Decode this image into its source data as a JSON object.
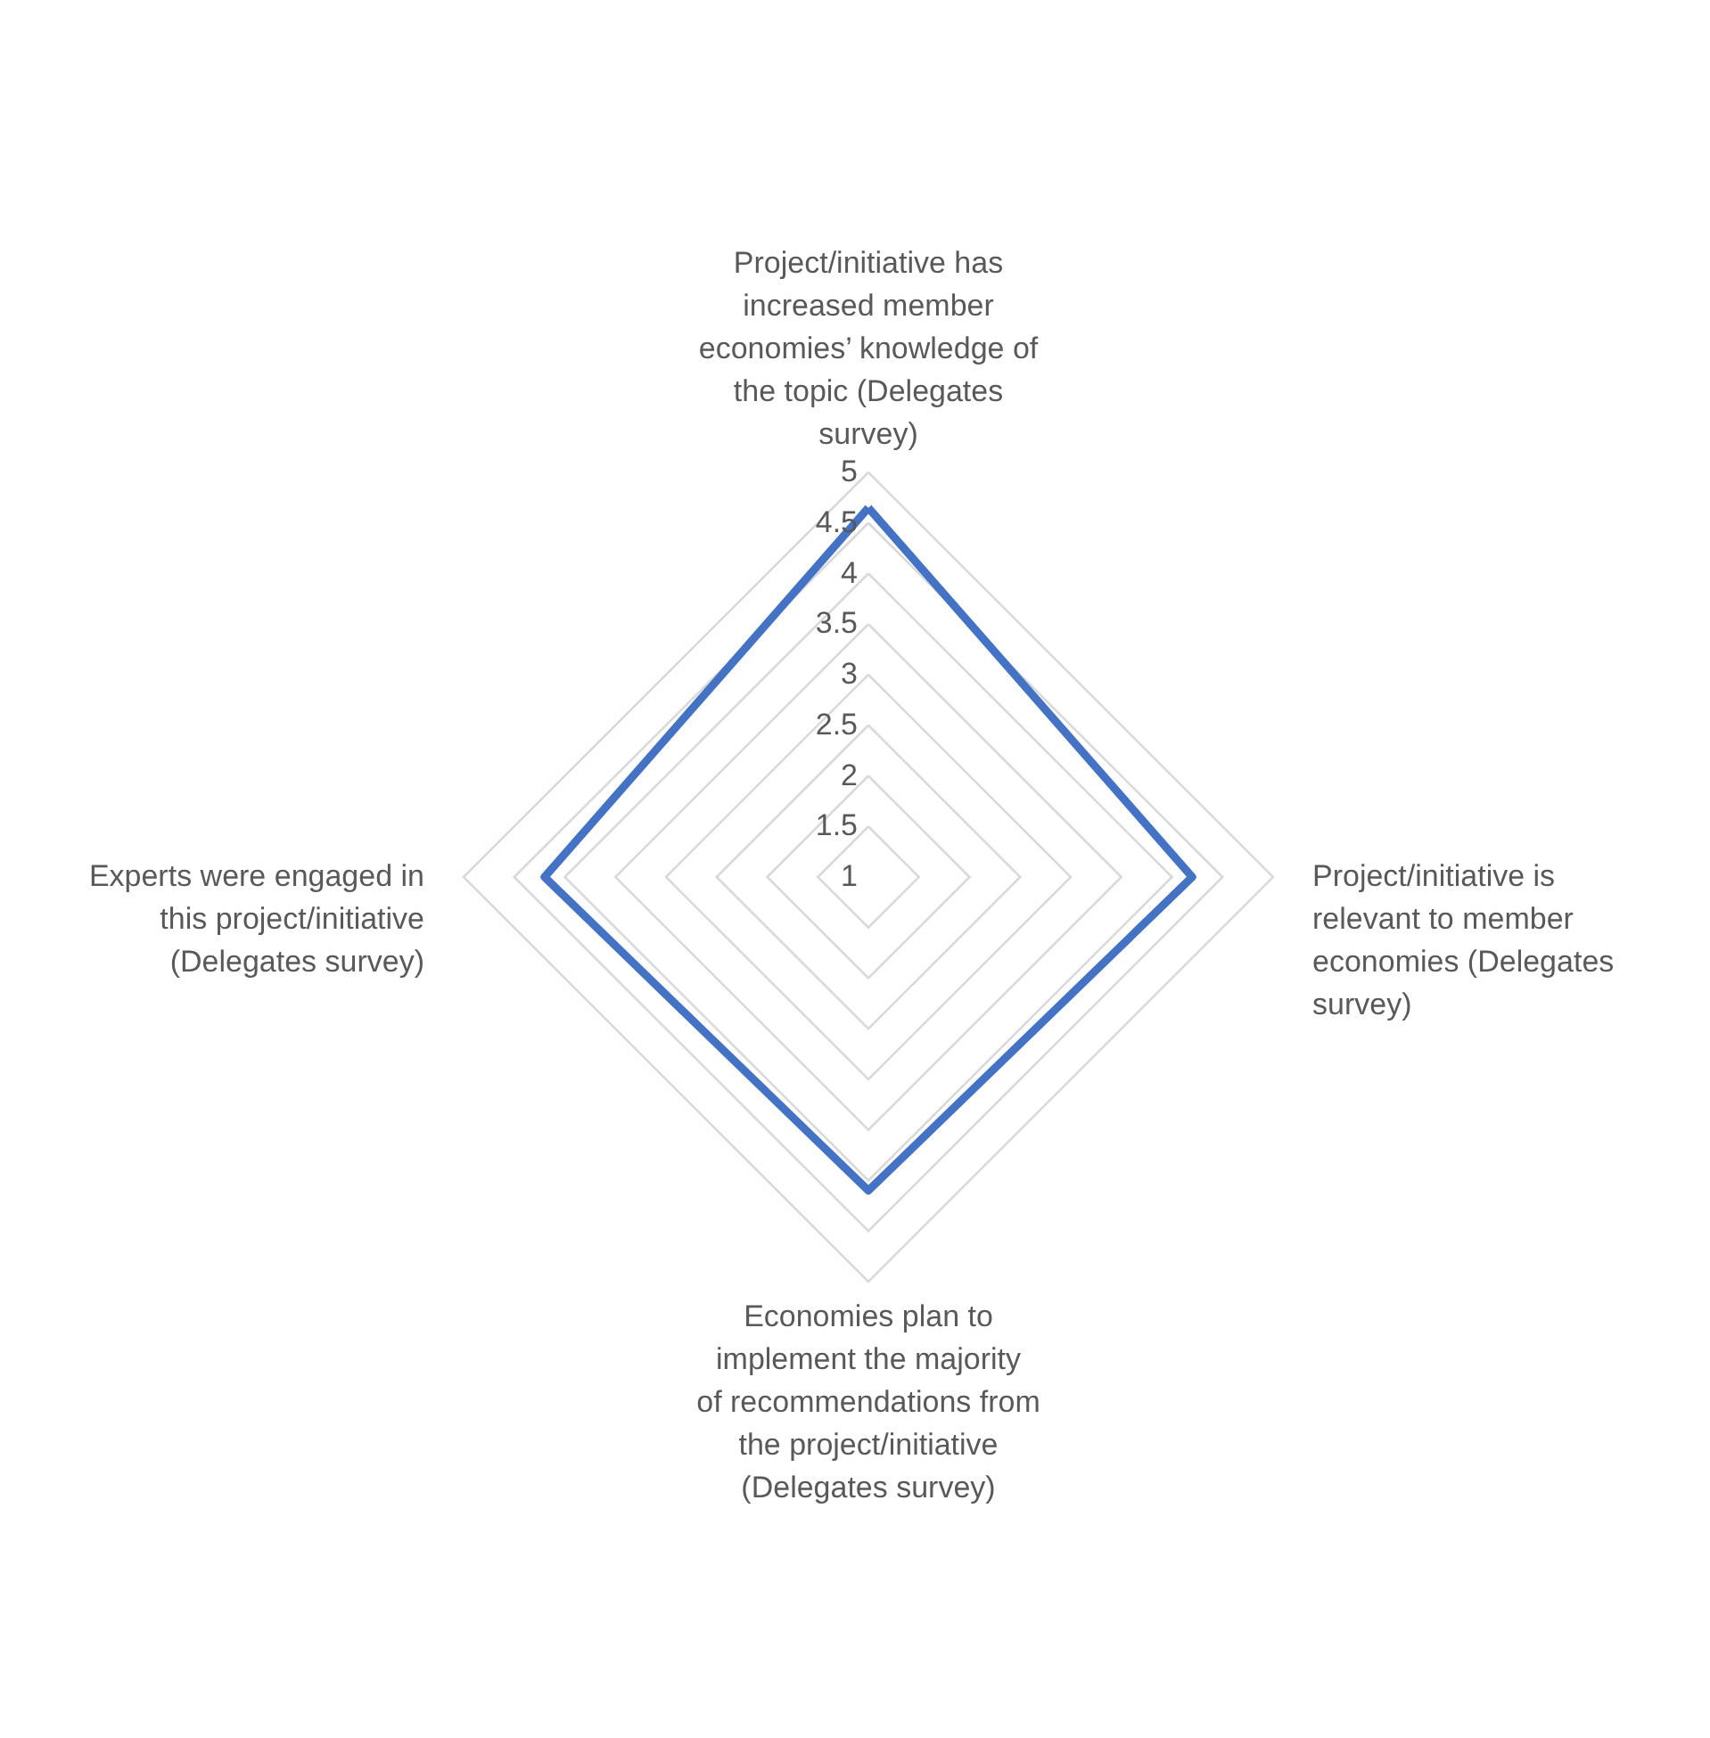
{
  "chart_data": {
    "type": "radar",
    "categories": [
      "Project/initiative has increased member economies’ knowledge of the topic (Delegates survey)",
      "Project/initiative is relevant to member economies (Delegates survey)",
      "Economies plan to implement the majority of recommendations from the project/initiative (Delegates survey)",
      "Experts were engaged in this project/initiative (Delegates survey)"
    ],
    "series": [
      {
        "color": "#4472c4",
        "values": [
          4.65,
          4.2,
          4.1,
          4.2
        ]
      }
    ],
    "ylim": [
      1,
      5
    ],
    "yticks": [
      1,
      1.5,
      2,
      2.5,
      3,
      3.5,
      4,
      4.5,
      5
    ],
    "grid": true
  }
}
